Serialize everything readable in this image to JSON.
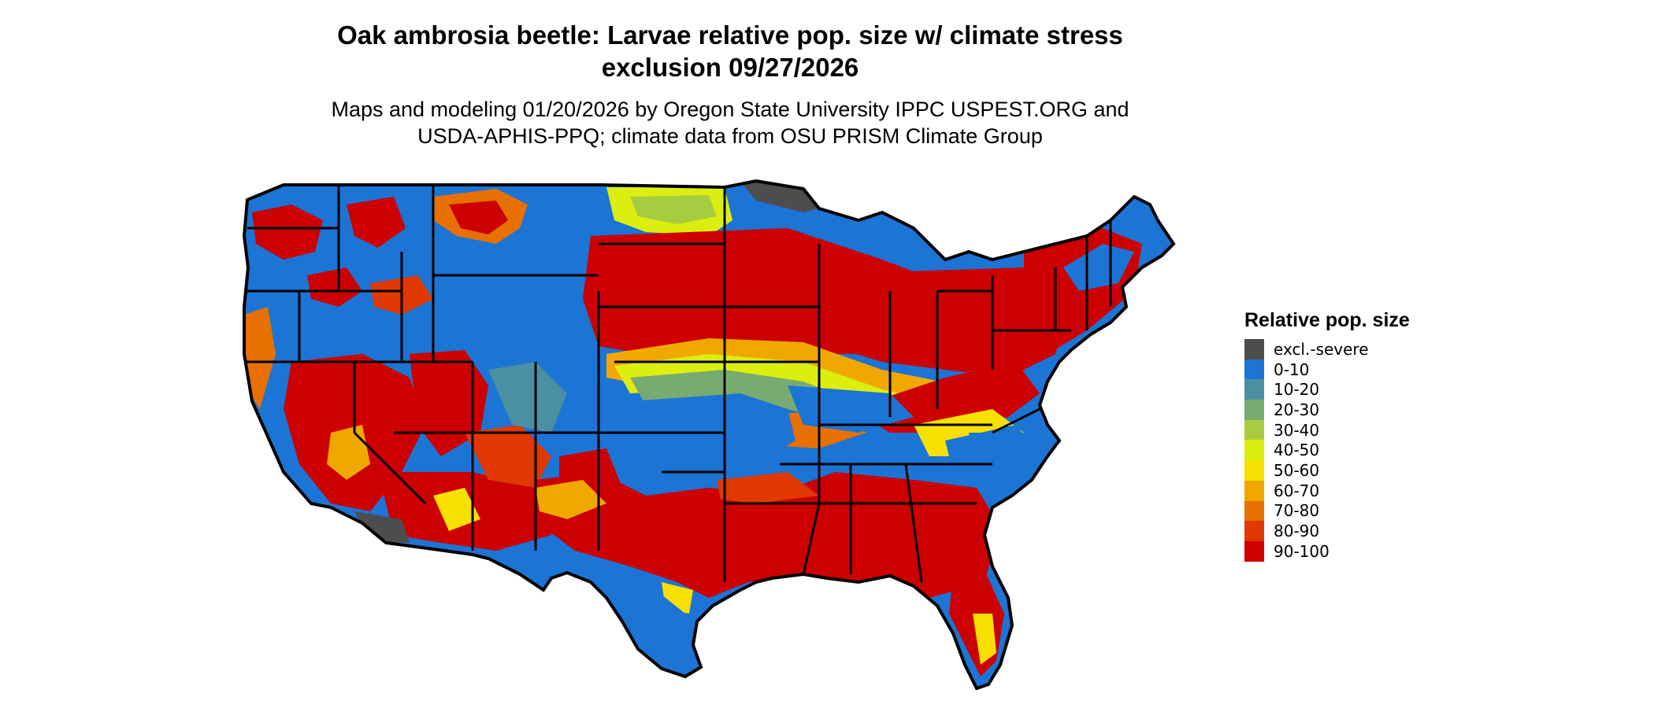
{
  "title_line1": "Oak ambrosia beetle: Larvae relative pop. size w/ climate stress",
  "title_line2": "exclusion 09/27/2026",
  "subtitle_line1": "Maps and modeling 01/20/2026 by Oregon State University IPPC USPEST.ORG and",
  "subtitle_line2": "USDA-APHIS-PPQ; climate data from OSU PRISM Climate Group",
  "legend": {
    "title": "Relative pop. size",
    "items": [
      {
        "label": "excl.-severe",
        "color": "#4d4d4d"
      },
      {
        "label": "0-10",
        "color": "#1c74d4"
      },
      {
        "label": "10-20",
        "color": "#4a8fa2"
      },
      {
        "label": "20-30",
        "color": "#78ab72"
      },
      {
        "label": "30-40",
        "color": "#a8cc40"
      },
      {
        "label": "40-50",
        "color": "#dcee10"
      },
      {
        "label": "50-60",
        "color": "#f8e000"
      },
      {
        "label": "60-70",
        "color": "#f0a800"
      },
      {
        "label": "70-80",
        "color": "#e87000"
      },
      {
        "label": "80-90",
        "color": "#e03800"
      },
      {
        "label": "90-100",
        "color": "#cc0000"
      }
    ]
  }
}
